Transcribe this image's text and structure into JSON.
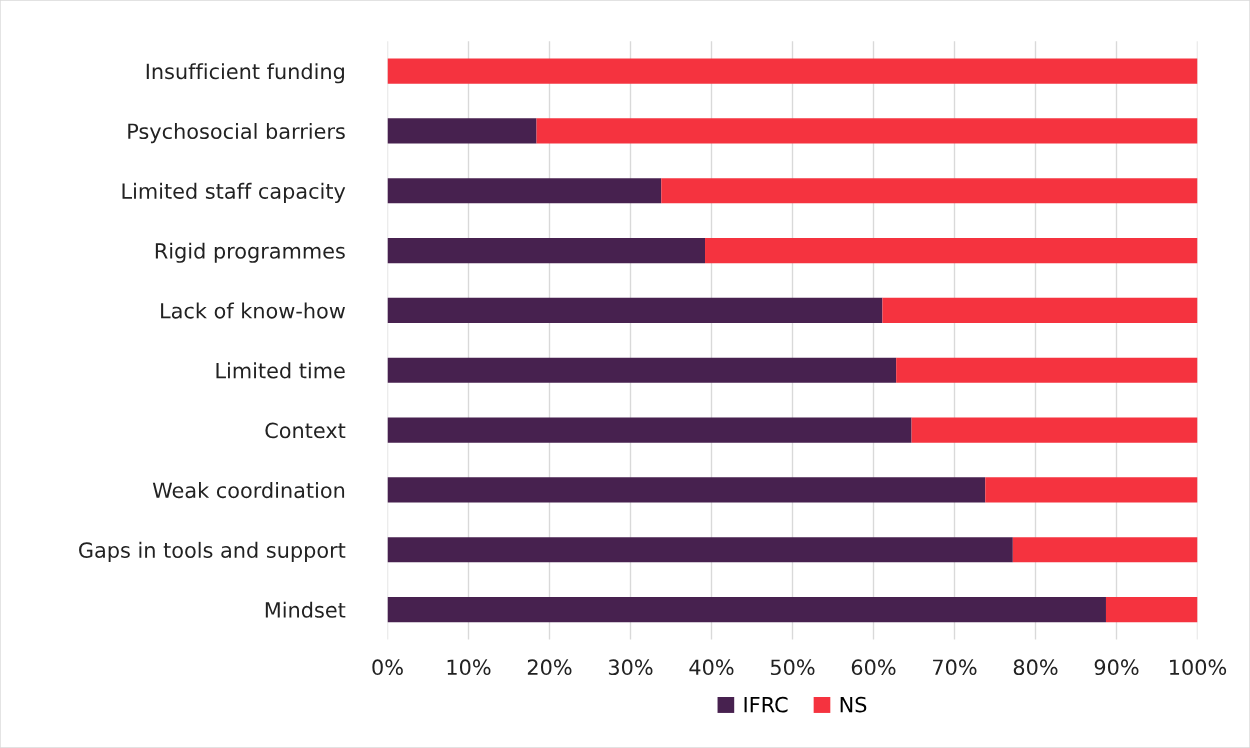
{
  "chart_data": {
    "type": "bar",
    "orientation": "horizontal",
    "stacked": true,
    "categories": [
      "Insufficient funding",
      "Psychosocial barriers",
      "Limited staff capacity",
      "Rigid programmes",
      "Lack of know-how",
      "Limited time",
      "Context",
      "Weak coordination",
      "Gaps in tools and support",
      "Mindset"
    ],
    "series": [
      {
        "name": "IFRC",
        "color": "#47214f",
        "values": [
          0,
          18.4,
          33.8,
          39.2,
          61.1,
          62.8,
          64.7,
          73.8,
          77.2,
          88.7
        ]
      },
      {
        "name": "NS",
        "color": "#f5333f",
        "values": [
          100,
          81.6,
          66.2,
          60.8,
          38.9,
          37.2,
          35.3,
          26.2,
          22.8,
          11.3
        ]
      }
    ],
    "xlim": [
      0,
      100
    ],
    "xticks": [
      {
        "value": 0,
        "label": "0%"
      },
      {
        "value": 10,
        "label": "10%"
      },
      {
        "value": 20,
        "label": "20%"
      },
      {
        "value": 30,
        "label": "30%"
      },
      {
        "value": 40,
        "label": "40%"
      },
      {
        "value": 50,
        "label": "50%"
      },
      {
        "value": 60,
        "label": "60%"
      },
      {
        "value": 70,
        "label": "70%"
      },
      {
        "value": 80,
        "label": "80%"
      },
      {
        "value": 90,
        "label": "90%"
      },
      {
        "value": 100,
        "label": "100%"
      }
    ],
    "grid": "x",
    "legend": "bottom"
  }
}
